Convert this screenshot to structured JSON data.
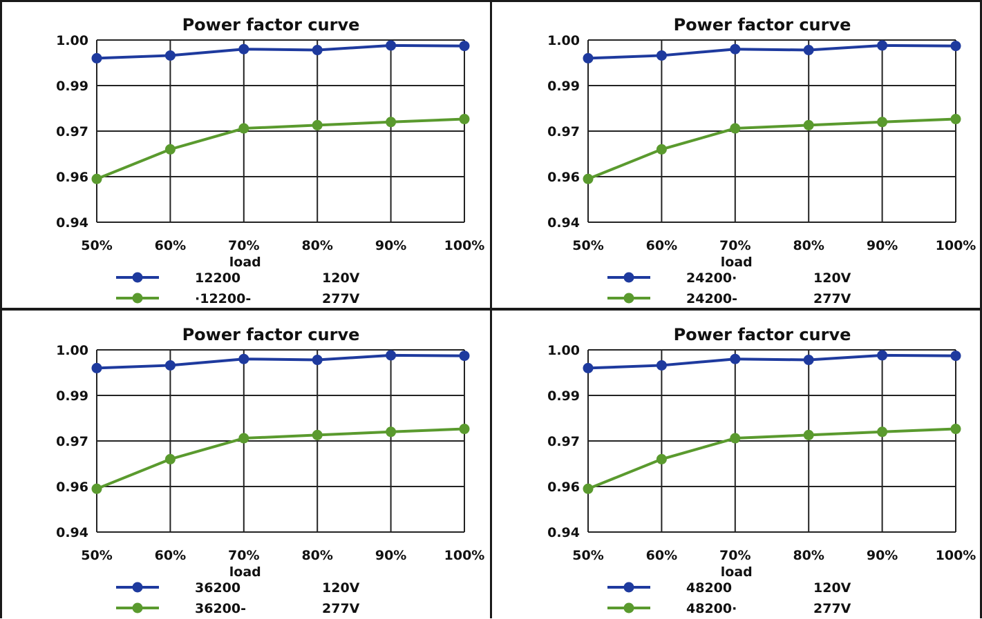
{
  "colors": {
    "series_120v": "#1e3a9e",
    "series_277v": "#5a9a2e",
    "grid": "#222222",
    "frame": "#1a1a1a"
  },
  "chart_data": [
    {
      "type": "line",
      "title": "Power factor curve",
      "xlabel": "load",
      "ylabel": "",
      "categories": [
        "50%",
        "60%",
        "70%",
        "80%",
        "90%",
        "100%"
      ],
      "yticks": [
        "1.00",
        "0.99",
        "0.97",
        "0.96",
        "0.94"
      ],
      "grid": true,
      "legend_position": "bottom-left",
      "series": [
        {
          "name": "12200",
          "voltage": "120V",
          "values": [
            0.996,
            0.9966,
            0.998,
            0.9978,
            0.9988,
            0.9987
          ]
        },
        {
          "name": "·12200-",
          "voltage": "277V",
          "values": [
            0.959,
            0.966,
            0.9712,
            0.9726,
            0.974,
            0.9753
          ]
        }
      ]
    },
    {
      "type": "line",
      "title": "Power factor curve",
      "xlabel": "load",
      "ylabel": "",
      "categories": [
        "50%",
        "60%",
        "70%",
        "80%",
        "90%",
        "100%"
      ],
      "yticks": [
        "1.00",
        "0.99",
        "0.97",
        "0.96",
        "0.94"
      ],
      "grid": true,
      "legend_position": "bottom-left",
      "series": [
        {
          "name": "24200·",
          "voltage": "120V",
          "values": [
            0.996,
            0.9966,
            0.998,
            0.9978,
            0.9988,
            0.9987
          ]
        },
        {
          "name": "24200-",
          "voltage": "277V",
          "values": [
            0.959,
            0.966,
            0.9712,
            0.9726,
            0.974,
            0.9753
          ]
        }
      ]
    },
    {
      "type": "line",
      "title": "Power factor curve",
      "xlabel": "load",
      "ylabel": "",
      "categories": [
        "50%",
        "60%",
        "70%",
        "80%",
        "90%",
        "100%"
      ],
      "yticks": [
        "1.00",
        "0.99",
        "0.97",
        "0.96",
        "0.94"
      ],
      "grid": true,
      "legend_position": "bottom-left",
      "series": [
        {
          "name": "36200",
          "voltage": "120V",
          "values": [
            0.996,
            0.9966,
            0.998,
            0.9978,
            0.9988,
            0.9987
          ]
        },
        {
          "name": "36200-",
          "voltage": "277V",
          "values": [
            0.959,
            0.966,
            0.9712,
            0.9726,
            0.974,
            0.9753
          ]
        }
      ]
    },
    {
      "type": "line",
      "title": "Power factor curve",
      "xlabel": "load",
      "ylabel": "",
      "categories": [
        "50%",
        "60%",
        "70%",
        "80%",
        "90%",
        "100%"
      ],
      "yticks": [
        "1.00",
        "0.99",
        "0.97",
        "0.96",
        "0.94"
      ],
      "grid": true,
      "legend_position": "bottom-left",
      "series": [
        {
          "name": "48200",
          "voltage": "120V",
          "values": [
            0.996,
            0.9966,
            0.998,
            0.9978,
            0.9988,
            0.9987
          ]
        },
        {
          "name": "48200·",
          "voltage": "277V",
          "values": [
            0.959,
            0.966,
            0.9712,
            0.9726,
            0.974,
            0.9753
          ]
        }
      ]
    }
  ]
}
